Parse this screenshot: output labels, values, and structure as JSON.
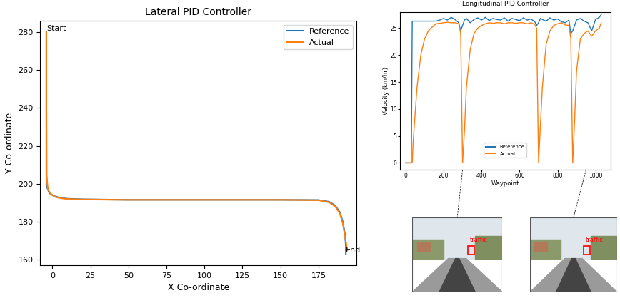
{
  "chart_data": [
    {
      "type": "line",
      "title": "Lateral PID Controller",
      "x_label": "X Co-ordinate",
      "y_label": "Y Co-ordinate",
      "xlim": [
        -8,
        200
      ],
      "xticks": [
        0,
        25,
        50,
        75,
        100,
        125,
        150,
        175
      ],
      "ylim": [
        157,
        286
      ],
      "yticks": [
        160,
        180,
        200,
        220,
        240,
        260,
        280
      ],
      "legend": "upper right",
      "annotations": [
        {
          "text": "Start",
          "x": -4,
          "y": 280
        },
        {
          "text": "End",
          "x": 193,
          "y": 163
        }
      ],
      "series": [
        {
          "name": "Reference",
          "color": "#1f77b4",
          "x": [
            -4,
            -4,
            -4,
            -3.5,
            -2,
            1,
            5,
            10,
            20,
            50,
            100,
            150,
            175,
            182,
            186,
            189,
            191,
            192.5,
            193,
            193
          ],
          "values": [
            280,
            240,
            205,
            198,
            195,
            193.5,
            192.6,
            192.1,
            191.8,
            191.5,
            191.5,
            191.5,
            191.4,
            190.5,
            188.5,
            185,
            180,
            173,
            167,
            163
          ]
        },
        {
          "name": "Actual",
          "color": "#ff7f0e",
          "x": [
            -4,
            -4,
            -3.8,
            -3,
            -1,
            2,
            6,
            11,
            20,
            50,
            100,
            150,
            175,
            182,
            186,
            189,
            191,
            192.5,
            193.5,
            194
          ],
          "values": [
            280,
            240,
            204,
            197,
            194.5,
            193,
            192.3,
            191.9,
            191.7,
            191.5,
            191.5,
            191.5,
            191.3,
            190.2,
            188,
            184.5,
            179,
            172,
            167,
            165
          ]
        }
      ]
    },
    {
      "type": "line",
      "title": "Longitudinal PID Controller",
      "x_label": "Waypoint",
      "y_label": "Velocity (km/hr)",
      "xlim": [
        -30,
        1080
      ],
      "xticks": [
        0,
        200,
        400,
        600,
        800,
        1000
      ],
      "ylim": [
        -1.3,
        28
      ],
      "yticks": [
        0,
        5,
        10,
        15,
        20,
        25
      ],
      "legend": "lower center",
      "x": [
        0,
        20,
        30,
        35,
        40,
        60,
        80,
        100,
        120,
        140,
        160,
        180,
        200,
        220,
        240,
        260,
        280,
        290,
        300,
        310,
        320,
        340,
        360,
        380,
        400,
        420,
        440,
        460,
        480,
        500,
        520,
        540,
        560,
        580,
        600,
        620,
        640,
        660,
        680,
        690,
        700,
        710,
        720,
        740,
        760,
        780,
        800,
        820,
        840,
        860,
        870,
        880,
        890,
        900,
        920,
        940,
        960,
        980,
        1000,
        1020,
        1030
      ],
      "series": [
        {
          "name": "Reference",
          "color": "#1f77b4",
          "values": [
            0,
            0,
            0,
            26.3,
            26.3,
            26.3,
            26.3,
            26.3,
            26.3,
            26.3,
            26.3,
            26.5,
            26.8,
            26.5,
            27,
            26.6,
            26,
            24.5,
            25.5,
            26.5,
            26.8,
            26,
            26.6,
            26.9,
            26.5,
            27,
            26.4,
            26.8,
            26.6,
            26.5,
            26.9,
            26.3,
            26.8,
            26.6,
            26.4,
            26.9,
            26.5,
            26.7,
            26.2,
            25.5,
            26,
            26.8,
            26.6,
            26.3,
            26.9,
            26.5,
            26.7,
            26.2,
            26,
            26.5,
            24,
            24.5,
            25.5,
            26.5,
            26.8,
            26.3,
            26,
            24.5,
            26.6,
            27,
            27.5
          ]
        },
        {
          "name": "Actual",
          "color": "#ff7f0e",
          "values": [
            0,
            0,
            0,
            0,
            4,
            14,
            20,
            23,
            24.5,
            25.2,
            25.8,
            25.9,
            26,
            26.1,
            26,
            26,
            25.8,
            24,
            0,
            6,
            14,
            21,
            24,
            25,
            25.5,
            25.8,
            26,
            25.9,
            26,
            26,
            25.8,
            26,
            26,
            25.9,
            26,
            26,
            25.8,
            26,
            25.7,
            25,
            0,
            7,
            14,
            22,
            24.5,
            25.5,
            25.8,
            26,
            25.6,
            25.5,
            23,
            0,
            8,
            17,
            23,
            24,
            24.5,
            23.5,
            24.5,
            25,
            26
          ]
        }
      ],
      "screenshots": [
        {
          "waypoint": 300,
          "text": "traffic"
        },
        {
          "waypoint": 950,
          "text": "traffic"
        }
      ]
    }
  ]
}
